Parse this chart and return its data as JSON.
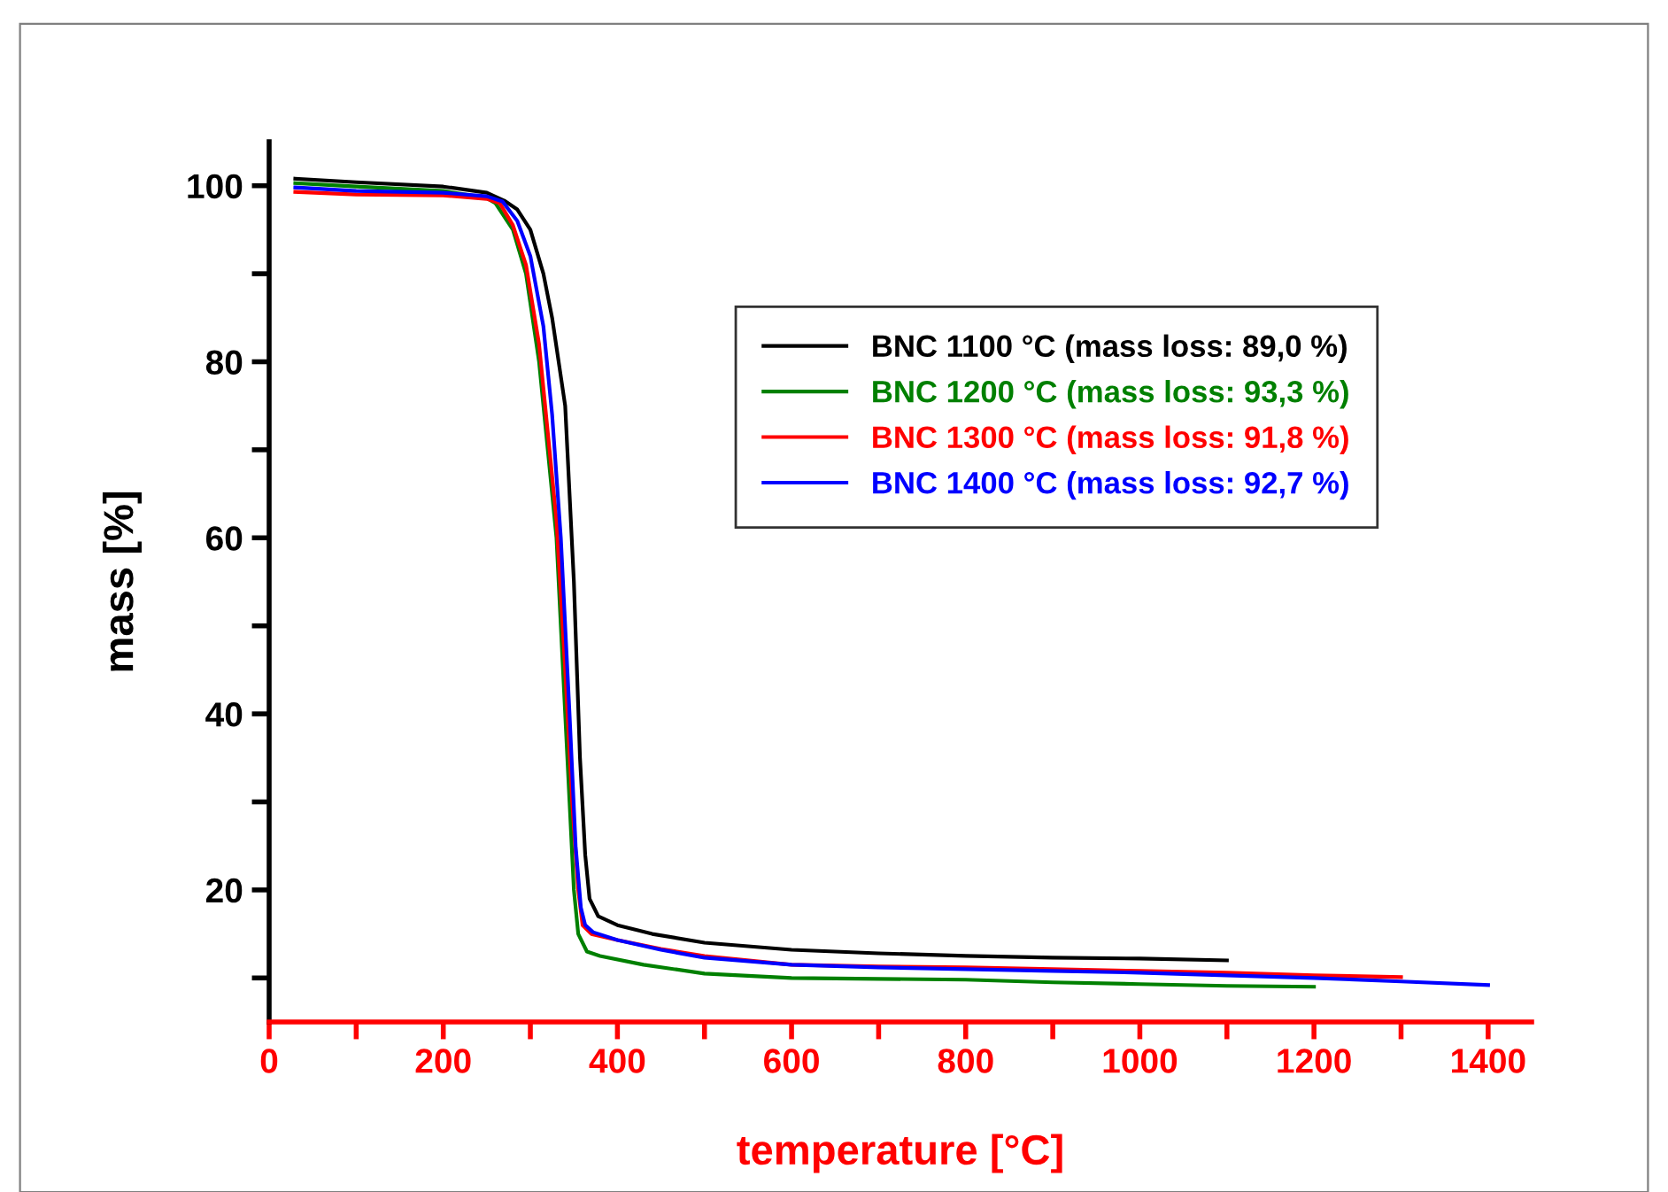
{
  "chart_data": {
    "type": "line",
    "xlabel": "temperature [°C]",
    "ylabel": "mass [%]",
    "xlim": [
      0,
      1450
    ],
    "ylim": [
      5,
      105
    ],
    "xticks": [
      0,
      {
        "value": 100,
        "label": null
      },
      200,
      {
        "value": 300,
        "label": null
      },
      400,
      {
        "value": 500,
        "label": null
      },
      600,
      {
        "value": 700,
        "label": null
      },
      800,
      {
        "value": 900,
        "label": null
      },
      1000,
      {
        "value": 1100,
        "label": null
      },
      1200,
      {
        "value": 1300,
        "label": null
      },
      1400
    ],
    "yticks": [
      {
        "value": 10,
        "label": null
      },
      20,
      {
        "value": 30,
        "label": null
      },
      40,
      {
        "value": 50,
        "label": null
      },
      60,
      {
        "value": 70,
        "label": null
      },
      80,
      {
        "value": 90,
        "label": null
      },
      100
    ],
    "legend": "top right",
    "grid": false,
    "marker": "none",
    "line_style": "solid",
    "series": [
      {
        "name": "BNC 1100 °C (mass loss: 89,0 %)",
        "color": "#000000",
        "x": [
          30,
          100,
          200,
          250,
          270,
          285,
          300,
          315,
          325,
          340,
          350,
          357,
          363,
          368,
          378,
          400,
          440,
          500,
          600,
          700,
          800,
          900,
          1000,
          1100
        ],
        "values": [
          100.8,
          100.4,
          99.9,
          99.2,
          98.3,
          97.3,
          95,
          90,
          85,
          75,
          55,
          35,
          24,
          19,
          17,
          16,
          15,
          14,
          13.2,
          12.8,
          12.5,
          12.3,
          12.2,
          12
        ]
      },
      {
        "name": "BNC 1200 °C (mass loss: 93,3 %)",
        "color": "#008000",
        "x": [
          30,
          100,
          200,
          250,
          260,
          280,
          295,
          310,
          320,
          330,
          340,
          345,
          350,
          355,
          365,
          380,
          430,
          500,
          600,
          700,
          800,
          900,
          1000,
          1100,
          1200
        ],
        "values": [
          100.3,
          99.9,
          99.4,
          98.6,
          98,
          95,
          90,
          80,
          70,
          60,
          40,
          30,
          20,
          15,
          13,
          12.5,
          11.5,
          10.5,
          10,
          9.9,
          9.8,
          9.5,
          9.3,
          9.1,
          9
        ]
      },
      {
        "name": "BNC 1300 °C (mass loss: 91,8 %)",
        "color": "#ff0000",
        "x": [
          30,
          100,
          200,
          250,
          265,
          280,
          295,
          310,
          320,
          330,
          340,
          348,
          355,
          360,
          370,
          400,
          450,
          500,
          600,
          700,
          800,
          900,
          1000,
          1100,
          1200,
          1300
        ],
        "values": [
          99.3,
          99.0,
          98.9,
          98.5,
          98,
          95.5,
          91,
          82,
          72,
          62,
          45,
          30,
          20,
          16,
          15,
          14.3,
          13.3,
          12.5,
          11.5,
          11.3,
          11.2,
          11,
          10.8,
          10.6,
          10.3,
          10.1
        ]
      },
      {
        "name": "BNC 1400 °C (mass loss: 92,7 %)",
        "color": "#0000ff",
        "x": [
          30,
          100,
          200,
          250,
          268,
          285,
          300,
          315,
          325,
          335,
          345,
          352,
          358,
          363,
          372,
          400,
          450,
          500,
          600,
          700,
          800,
          900,
          1000,
          1100,
          1200,
          1300,
          1400
        ],
        "values": [
          99.8,
          99.4,
          99.2,
          98.8,
          98.2,
          96,
          92,
          84,
          74,
          60,
          40,
          25,
          18,
          16,
          15.2,
          14.3,
          13.2,
          12.3,
          11.5,
          11.2,
          11,
          10.8,
          10.6,
          10.3,
          10,
          9.6,
          9.2
        ]
      }
    ]
  }
}
